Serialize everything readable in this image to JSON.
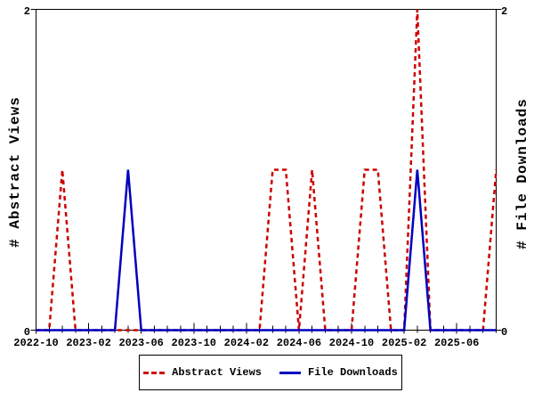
{
  "chart_data": {
    "type": "line",
    "title": "",
    "background": "#ffffff",
    "axis_color": "#000000",
    "grid": false,
    "legend_position": "bottom-center",
    "ylabel_left": "# Abstract Views",
    "ylabel_right": "# File Downloads",
    "ylim": [
      0,
      2
    ],
    "yticks": [
      0,
      2
    ],
    "xtick_label_every": 4,
    "xtick_labels": [
      "2022-10",
      "2023-02",
      "2023-06",
      "2023-10",
      "2024-02",
      "2024-06",
      "2024-10",
      "2025-02",
      "2025-06"
    ],
    "x": [
      "2022-10",
      "2022-11",
      "2022-12",
      "2023-01",
      "2023-02",
      "2023-03",
      "2023-04",
      "2023-05",
      "2023-06",
      "2023-07",
      "2023-08",
      "2023-09",
      "2023-10",
      "2023-11",
      "2023-12",
      "2024-01",
      "2024-02",
      "2024-03",
      "2024-04",
      "2024-05",
      "2024-06",
      "2024-07",
      "2024-08",
      "2024-09",
      "2024-10",
      "2024-11",
      "2024-12",
      "2025-01",
      "2025-02",
      "2025-03",
      "2025-04",
      "2025-05",
      "2025-06",
      "2025-07",
      "2025-08",
      "2025-09"
    ],
    "series": [
      {
        "name": "Abstract Views",
        "color": "#cc0000",
        "line_style": "dashed",
        "values": [
          0,
          0,
          1,
          0,
          0,
          0,
          0,
          0,
          0,
          0,
          0,
          0,
          0,
          0,
          0,
          0,
          0,
          0,
          1,
          1,
          0,
          1,
          0,
          0,
          0,
          1,
          1,
          0,
          0,
          2,
          0,
          0,
          0,
          0,
          0,
          1
        ]
      },
      {
        "name": "File Downloads",
        "color": "#0000c0",
        "line_style": "solid",
        "values": [
          0,
          0,
          0,
          0,
          0,
          0,
          0,
          1,
          0,
          0,
          0,
          0,
          0,
          0,
          0,
          0,
          0,
          0,
          0,
          0,
          0,
          0,
          0,
          0,
          0,
          0,
          0,
          0,
          0,
          1,
          0,
          0,
          0,
          0,
          0,
          0
        ]
      }
    ]
  }
}
